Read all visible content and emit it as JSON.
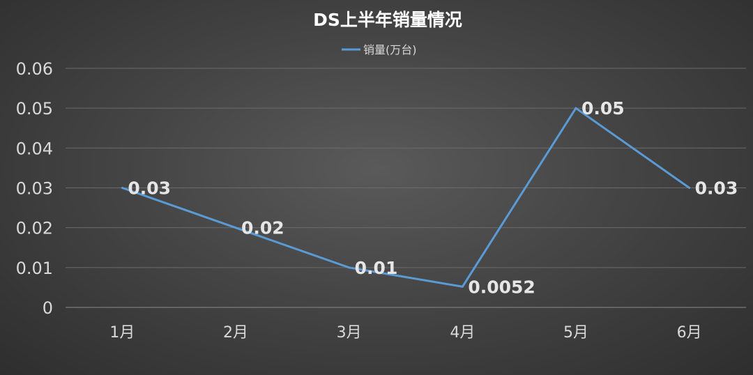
{
  "chart_data": {
    "type": "line",
    "title": "DS上半年销量情况",
    "categories": [
      "1月",
      "2月",
      "3月",
      "4月",
      "5月",
      "6月"
    ],
    "series": [
      {
        "name": "销量(万台)",
        "values": [
          0.03,
          0.02,
          0.01,
          0.0052,
          0.05,
          0.03
        ],
        "labels": [
          "0.03",
          "0.02",
          "0.01",
          "0.0052",
          "0.05",
          "0.03"
        ],
        "color": "#5b9bd5"
      }
    ],
    "yticks": [
      "0",
      "0.01",
      "0.02",
      "0.03",
      "0.04",
      "0.05",
      "0.06"
    ],
    "ylim": [
      0,
      0.06
    ],
    "grid": true,
    "legend_position": "top"
  }
}
